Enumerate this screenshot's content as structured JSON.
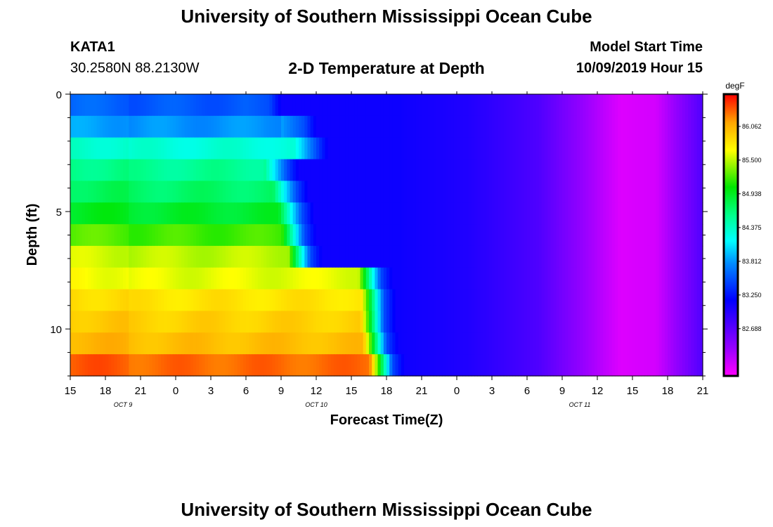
{
  "header": {
    "title": "University of Southern Mississippi Ocean Cube",
    "station": "KATA1",
    "coords": "30.2580N 88.2130W",
    "chart_title": "2-D Temperature at Depth",
    "model_label": "Model Start Time",
    "model_time": "10/09/2019 Hour 15"
  },
  "footer": {
    "title": "University of Southern Mississippi Ocean Cube"
  },
  "chart_data": {
    "type": "heatmap",
    "title": "2-D Temperature at Depth",
    "xlabel": "Forecast Time(Z)",
    "ylabel": "Depth (ft)",
    "x_hours": [
      0,
      54
    ],
    "x_ticks": [
      {
        "h": 0,
        "label": "15"
      },
      {
        "h": 3,
        "label": "18"
      },
      {
        "h": 6,
        "label": "21"
      },
      {
        "h": 9,
        "label": "0"
      },
      {
        "h": 12,
        "label": "3"
      },
      {
        "h": 15,
        "label": "6"
      },
      {
        "h": 18,
        "label": "9"
      },
      {
        "h": 21,
        "label": "12"
      },
      {
        "h": 24,
        "label": "15"
      },
      {
        "h": 27,
        "label": "18"
      },
      {
        "h": 30,
        "label": "21"
      },
      {
        "h": 33,
        "label": "0"
      },
      {
        "h": 36,
        "label": "3"
      },
      {
        "h": 39,
        "label": "6"
      },
      {
        "h": 42,
        "label": "9"
      },
      {
        "h": 45,
        "label": "12"
      },
      {
        "h": 48,
        "label": "15"
      },
      {
        "h": 51,
        "label": "18"
      },
      {
        "h": 54,
        "label": "21"
      }
    ],
    "date_labels": [
      {
        "h": 4.5,
        "label": "OCT 9"
      },
      {
        "h": 21,
        "label": "OCT 10"
      },
      {
        "h": 43.5,
        "label": "OCT 11"
      }
    ],
    "ylim": [
      0,
      12
    ],
    "y_ticks": [
      {
        "v": 0,
        "label": "0"
      },
      {
        "v": 5,
        "label": "5"
      },
      {
        "v": 10,
        "label": "10"
      }
    ],
    "colorbar": {
      "unit": "degF",
      "min": 81.9,
      "max": 86.6,
      "ticks": [
        "86.062",
        "85.500",
        "84.938",
        "84.375",
        "83.812",
        "83.250",
        "82.688"
      ],
      "tick_values": [
        86.062,
        85.5,
        84.938,
        84.375,
        83.812,
        83.25,
        82.688
      ]
    },
    "early_block_hours": [
      0,
      20
    ],
    "early_profile_degF": [
      83.6,
      83.85,
      84.35,
      84.6,
      84.75,
      84.95,
      85.25,
      85.55,
      85.65,
      85.85,
      85.95,
      86.05,
      86.35
    ],
    "front_depth_ft": [
      0,
      1,
      2,
      3,
      4,
      5,
      6,
      7,
      8,
      9,
      10,
      11,
      12
    ],
    "front_hours": [
      17,
      20,
      21,
      18.5,
      19.3,
      19.8,
      20,
      20.5,
      26.5,
      26.8,
      26.8,
      27,
      27.5
    ],
    "after_front_degF": 83.1,
    "late_trend": {
      "hours": [
        28,
        34,
        40,
        44,
        47,
        50,
        54
      ],
      "degF": [
        83.1,
        83.0,
        82.75,
        82.35,
        82.05,
        82.1,
        82.75
      ]
    }
  }
}
